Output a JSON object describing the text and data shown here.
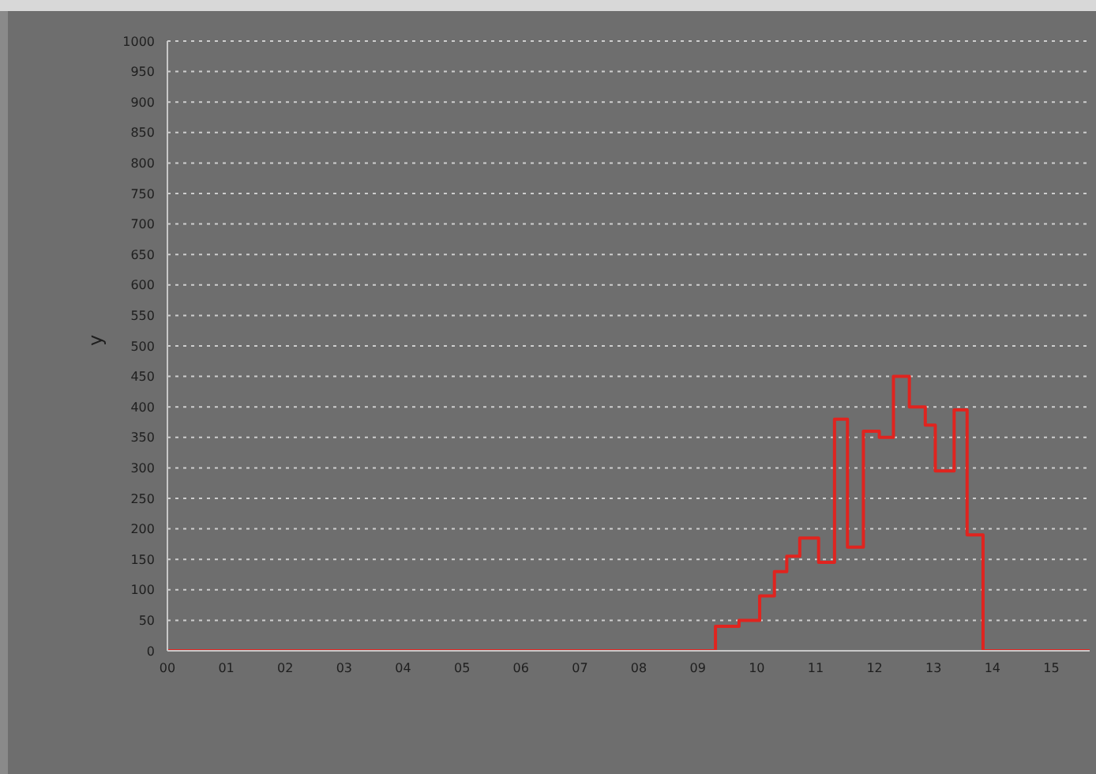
{
  "chart_data": {
    "type": "step",
    "ylabel": "y",
    "x": [
      0,
      9.3,
      9.7,
      10.05,
      10.3,
      10.51,
      10.73,
      11.05,
      11.32,
      11.54,
      11.81,
      12.08,
      12.32,
      12.59,
      12.86,
      13.03,
      13.35,
      13.57,
      13.84,
      15.65
    ],
    "series": [
      {
        "color": "#e0241f",
        "values": [
          0,
          40,
          50,
          90,
          130,
          155,
          185,
          145,
          380,
          170,
          360,
          350,
          450,
          400,
          370,
          295,
          395,
          190,
          0,
          0
        ]
      }
    ],
    "xlim": [
      0,
      15.65
    ],
    "xticks": [
      {
        "value": 0,
        "label": "00"
      },
      {
        "value": 1,
        "label": "01"
      },
      {
        "value": 2,
        "label": "02"
      },
      {
        "value": 3,
        "label": "03"
      },
      {
        "value": 4,
        "label": "04"
      },
      {
        "value": 5,
        "label": "05"
      },
      {
        "value": 6,
        "label": "06"
      },
      {
        "value": 7,
        "label": "07"
      },
      {
        "value": 8,
        "label": "08"
      },
      {
        "value": 9,
        "label": "09"
      },
      {
        "value": 10,
        "label": "10"
      },
      {
        "value": 11,
        "label": "11"
      },
      {
        "value": 12,
        "label": "12"
      },
      {
        "value": 13,
        "label": "13"
      },
      {
        "value": 14,
        "label": "14"
      },
      {
        "value": 15,
        "label": "15"
      }
    ],
    "ylim": [
      0,
      1000
    ],
    "yticks": [
      0,
      50,
      100,
      150,
      200,
      250,
      300,
      350,
      400,
      450,
      500,
      550,
      600,
      650,
      700,
      750,
      800,
      850,
      900,
      950,
      1000
    ],
    "grid": "y",
    "marker": "none",
    "line_style": "solid",
    "legend": false
  }
}
